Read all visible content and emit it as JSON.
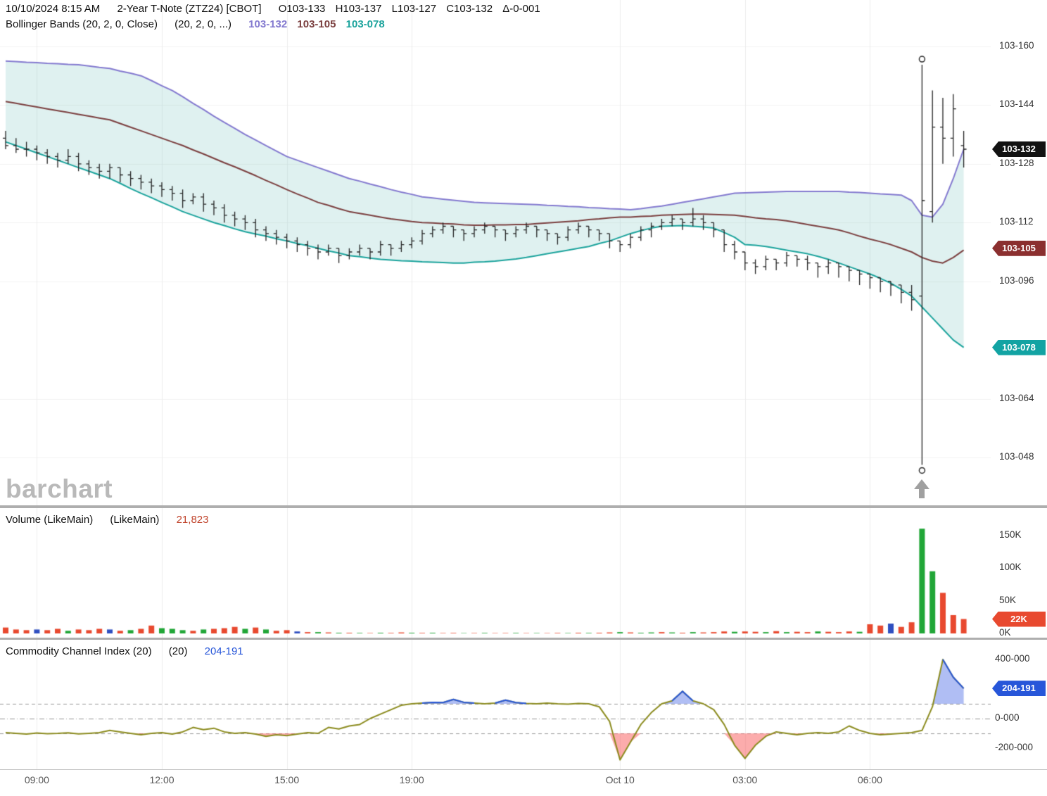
{
  "header": {
    "datetime": "10/10/2024 8:15 AM",
    "symbol": "2-Year T-Note (ZTZ24) [CBOT]",
    "open": "O103-133",
    "high": "H103-137",
    "low": "L103-127",
    "close": "C103-132",
    "change": "Δ-0-001",
    "indicator": "Bollinger Bands (20, 2, 0, Close)",
    "indicator_params": "(20, 2, 0, ...)",
    "bb_upper_value": "103-132",
    "bb_middle_value": "103-105",
    "bb_lower_value": "103-078"
  },
  "volume_header": {
    "label": "Volume (LikeMain)",
    "params": "(LikeMain)",
    "value": "21,823"
  },
  "cci_header": {
    "label": "Commodity Channel Index (20)",
    "params": "(20)",
    "value": "204-191"
  },
  "watermark": "barchart",
  "badges": {
    "last_price": {
      "label": "103-132",
      "value": 132,
      "color": "#121212"
    },
    "bb_middle": {
      "label": "103-105",
      "value": 105,
      "color": "#8b2f2f"
    },
    "bb_lower": {
      "label": "103-078",
      "value": 78,
      "color": "#12a3a3"
    },
    "volume": {
      "label": "22K",
      "value": 22,
      "color": "#e8492f"
    },
    "cci": {
      "label": "204-191",
      "value": 204,
      "color": "#2756d9"
    }
  },
  "x_ticks": [
    {
      "label": "09:00",
      "bar": 3
    },
    {
      "label": "12:00",
      "bar": 15
    },
    {
      "label": "15:00",
      "bar": 27
    },
    {
      "label": "19:00",
      "bar": 39
    },
    {
      "label": "Oct 10",
      "bar": 59
    },
    {
      "label": "03:00",
      "bar": 71
    },
    {
      "label": "06:00",
      "bar": 83
    }
  ],
  "colors": {
    "bb_upper": "#8379cf",
    "bb_middle": "#7b3f3f",
    "bb_lower": "#1ba39c",
    "band_fill": "rgba(140,205,200,0.28)",
    "bar": "#222222",
    "volume_up": "#21a637",
    "volume_down": "#e8492f",
    "volume_neutral": "#2f4fc0",
    "cci_line": "#8b8b1e",
    "cci_above_line": "#2756d9",
    "cci_fill_above": "rgba(80,110,230,0.45)",
    "cci_fill_below": "rgba(250,90,90,0.5)",
    "grid": "#ededed",
    "level_dash": "#999999"
  },
  "chart_data": [
    {
      "type": "ohlc",
      "title": "2-Year T-Note (ZTZ24) [CBOT] with Bollinger Bands (20, 2, 0, Close)",
      "price_format_note": "values are the fractional part of 103-XXX treasury quotes",
      "ylim": [
        46,
        160
      ],
      "y_ticks": [
        {
          "label": "103-160",
          "value": 160
        },
        {
          "label": "103-144",
          "value": 144
        },
        {
          "label": "103-128",
          "value": 128
        },
        {
          "label": "103-112",
          "value": 112
        },
        {
          "label": "103-096",
          "value": 96
        },
        {
          "label": "103-064",
          "value": 64
        },
        {
          "label": "103-048",
          "value": 48
        }
      ],
      "spike_bar_index": 88,
      "bars": [
        [
          135,
          137,
          132,
          133
        ],
        [
          133,
          135,
          131,
          132
        ],
        [
          132,
          134,
          130,
          132
        ],
        [
          132,
          133,
          129,
          131
        ],
        [
          131,
          132,
          128,
          130
        ],
        [
          130,
          131,
          127,
          129
        ],
        [
          129,
          132,
          128,
          130
        ],
        [
          130,
          131,
          126,
          128
        ],
        [
          128,
          129,
          125,
          127
        ],
        [
          127,
          128,
          124,
          126
        ],
        [
          126,
          128,
          124,
          127
        ],
        [
          127,
          127,
          123,
          125
        ],
        [
          125,
          126,
          122,
          124
        ],
        [
          124,
          125,
          121,
          123
        ],
        [
          123,
          124,
          120,
          122
        ],
        [
          122,
          123,
          119,
          121
        ],
        [
          121,
          122,
          118,
          120
        ],
        [
          120,
          121,
          116,
          118
        ],
        [
          118,
          120,
          117,
          119
        ],
        [
          119,
          120,
          115,
          117
        ],
        [
          117,
          118,
          114,
          116
        ],
        [
          116,
          117,
          112,
          114
        ],
        [
          114,
          115,
          111,
          113
        ],
        [
          113,
          114,
          110,
          112
        ],
        [
          112,
          113,
          108,
          110
        ],
        [
          110,
          111,
          107,
          109
        ],
        [
          109,
          110,
          106,
          108
        ],
        [
          108,
          109,
          105,
          107
        ],
        [
          107,
          108,
          104,
          106
        ],
        [
          106,
          107,
          103,
          105
        ],
        [
          105,
          106,
          102,
          104
        ],
        [
          104,
          106,
          103,
          105
        ],
        [
          105,
          105,
          101,
          103
        ],
        [
          103,
          105,
          102,
          104
        ],
        [
          104,
          106,
          103,
          105
        ],
        [
          105,
          105,
          102,
          104
        ],
        [
          104,
          107,
          103,
          106
        ],
        [
          106,
          106,
          103,
          105
        ],
        [
          105,
          107,
          104,
          106
        ],
        [
          106,
          108,
          105,
          107
        ],
        [
          107,
          110,
          106,
          109
        ],
        [
          109,
          111,
          108,
          110
        ],
        [
          110,
          112,
          109,
          111
        ],
        [
          111,
          111,
          108,
          110
        ],
        [
          110,
          110,
          107,
          109
        ],
        [
          109,
          111,
          108,
          110
        ],
        [
          110,
          112,
          109,
          111
        ],
        [
          111,
          111,
          108,
          110
        ],
        [
          110,
          110,
          107,
          109
        ],
        [
          109,
          111,
          108,
          110
        ],
        [
          110,
          112,
          109,
          111
        ],
        [
          111,
          111,
          108,
          110
        ],
        [
          110,
          110,
          107,
          109
        ],
        [
          109,
          109,
          106,
          108
        ],
        [
          108,
          111,
          107,
          110
        ],
        [
          110,
          112,
          109,
          111
        ],
        [
          111,
          111,
          108,
          110
        ],
        [
          110,
          110,
          107,
          109
        ],
        [
          109,
          109,
          105,
          107
        ],
        [
          107,
          107,
          104,
          106
        ],
        [
          106,
          109,
          105,
          108
        ],
        [
          108,
          111,
          107,
          110
        ],
        [
          110,
          112,
          108,
          111
        ],
        [
          111,
          113,
          110,
          112
        ],
        [
          112,
          114,
          111,
          113
        ],
        [
          113,
          113,
          110,
          112
        ],
        [
          112,
          116,
          111,
          113
        ],
        [
          113,
          114,
          110,
          112
        ],
        [
          112,
          112,
          108,
          110
        ],
        [
          110,
          110,
          104,
          106
        ],
        [
          106,
          107,
          102,
          104
        ],
        [
          104,
          104,
          99,
          101
        ],
        [
          101,
          102,
          98,
          100
        ],
        [
          100,
          103,
          99,
          102
        ],
        [
          102,
          102,
          99,
          101
        ],
        [
          101,
          104,
          100,
          103
        ],
        [
          103,
          103,
          100,
          102
        ],
        [
          102,
          103,
          99,
          101
        ],
        [
          101,
          101,
          97,
          100
        ],
        [
          100,
          102,
          98,
          101
        ],
        [
          101,
          101,
          97,
          100
        ],
        [
          100,
          100,
          96,
          99
        ],
        [
          99,
          99,
          95,
          98
        ],
        [
          98,
          98,
          94,
          97
        ],
        [
          97,
          97,
          93,
          96
        ],
        [
          96,
          96,
          92,
          95
        ],
        [
          95,
          95,
          90,
          93
        ],
        [
          93,
          95,
          88,
          91
        ],
        [
          92,
          155,
          46,
          118
        ],
        [
          115,
          148,
          112,
          138
        ],
        [
          138,
          146,
          128,
          135
        ],
        [
          135,
          147,
          130,
          143
        ],
        [
          133,
          137,
          127,
          132
        ]
      ],
      "bands": {
        "upper": [
          156,
          155.9,
          155.7,
          155.6,
          155.4,
          155.3,
          155.1,
          155,
          154.7,
          154.3,
          154,
          153.3,
          152.7,
          152,
          150.7,
          149.3,
          148,
          146.3,
          144.5,
          142.8,
          141,
          139.3,
          137.7,
          136,
          134.5,
          133,
          131.5,
          130,
          129,
          128,
          127,
          126,
          125,
          124,
          123.3,
          122.5,
          121.8,
          121,
          120.3,
          119.7,
          119,
          118.7,
          118.4,
          118.1,
          117.8,
          117.5,
          117.4,
          117.3,
          117.2,
          117.1,
          117,
          116.9,
          116.7,
          116.6,
          116.4,
          116.3,
          116.1,
          116,
          115.8,
          115.7,
          115.5,
          115.8,
          116.2,
          116.5,
          117,
          117.5,
          118,
          118.5,
          119,
          119.5,
          120,
          120.1,
          120.2,
          120.3,
          120.4,
          120.5,
          120.5,
          120.5,
          120.5,
          120.5,
          120.5,
          120.3,
          120.2,
          120,
          119.8,
          119.7,
          119.5,
          118,
          114,
          113.5,
          117,
          124,
          132
        ],
        "middle": [
          145,
          144.5,
          144,
          143.5,
          143,
          142.5,
          142,
          141.5,
          141,
          140.5,
          140,
          139,
          138,
          137,
          136,
          135,
          134,
          133,
          131.8,
          130.7,
          129.5,
          128.3,
          127.2,
          126,
          124.8,
          123.5,
          122.3,
          121,
          119.8,
          118.7,
          117.5,
          116.7,
          115.8,
          115,
          114.5,
          114,
          113.5,
          113,
          112.7,
          112.3,
          112,
          111.9,
          111.7,
          111.6,
          111.4,
          111.3,
          111.3,
          111.4,
          111.4,
          111.5,
          111.5,
          111.7,
          111.9,
          112.1,
          112.3,
          112.5,
          112.8,
          113,
          113.3,
          113.5,
          113.5,
          113.7,
          113.8,
          114,
          114.1,
          114.2,
          114.3,
          114.3,
          114.2,
          114.1,
          114,
          113.7,
          113.3,
          113,
          112.8,
          112.5,
          112,
          111.5,
          111,
          110.5,
          110,
          109.2,
          108.3,
          107.5,
          106.8,
          106,
          105,
          104,
          102.5,
          101.5,
          101,
          102.5,
          104.5
        ],
        "lower": [
          134,
          133,
          132,
          131,
          130,
          129,
          128,
          127,
          126,
          125,
          124,
          122.7,
          121.3,
          120,
          118.8,
          117.5,
          116.3,
          115,
          114,
          113,
          112,
          111.2,
          110.3,
          109.5,
          108.9,
          108.3,
          107.6,
          107,
          106.3,
          105.7,
          105,
          104.3,
          103.7,
          103,
          102.7,
          102.3,
          102,
          101.8,
          101.6,
          101.5,
          101.3,
          101.2,
          101.1,
          101,
          101,
          101.2,
          101.3,
          101.5,
          101.8,
          102.1,
          102.5,
          103,
          103.5,
          104,
          104.5,
          105,
          105.5,
          106.3,
          107,
          108,
          109,
          109.8,
          110.5,
          111,
          111.1,
          111.2,
          111,
          110.8,
          110.5,
          109.3,
          108,
          106,
          105.8,
          105.5,
          105,
          104.5,
          104,
          103.5,
          102.8,
          102,
          101,
          100,
          99,
          98,
          96.8,
          95.5,
          93.8,
          92,
          89,
          86,
          83,
          80,
          78
        ]
      }
    },
    {
      "type": "bar",
      "name": "Volume (LikeMain)",
      "unit": "K",
      "ylim": [
        0,
        170
      ],
      "y_ticks": [
        {
          "label": "150K",
          "value": 150
        },
        {
          "label": "100K",
          "value": 100
        },
        {
          "label": "50K",
          "value": 50
        },
        {
          "label": "0K",
          "value": 0
        }
      ],
      "values": [
        9,
        6,
        5,
        6,
        5,
        7,
        4,
        6,
        5,
        7,
        6,
        4,
        5,
        7,
        12,
        8,
        7,
        5,
        4,
        6,
        7,
        8,
        10,
        7,
        9,
        6,
        4,
        5,
        3,
        2,
        2,
        1.5,
        1,
        1,
        0.8,
        0.6,
        1,
        0.8,
        1.5,
        1,
        0.8,
        1,
        0.6,
        0.8,
        0.5,
        0.6,
        0.8,
        0.5,
        0.6,
        0.8,
        0.5,
        0.6,
        0.5,
        0.8,
        0.6,
        1,
        0.8,
        1,
        1.5,
        2,
        1.5,
        1,
        1.5,
        2,
        1.5,
        1,
        2,
        1.5,
        2,
        3,
        2.5,
        3,
        2.5,
        2,
        3.5,
        2,
        2.5,
        2,
        3,
        2.5,
        2,
        3,
        2.5,
        14,
        12,
        15,
        10,
        17,
        160,
        95,
        62,
        28,
        22
      ],
      "bar_colors": [
        "r",
        "r",
        "r",
        "b",
        "r",
        "r",
        "g",
        "r",
        "r",
        "r",
        "b",
        "r",
        "g",
        "r",
        "r",
        "g",
        "g",
        "g",
        "r",
        "g",
        "r",
        "r",
        "r",
        "g",
        "r",
        "g",
        "r",
        "r",
        "b",
        "r",
        "g",
        "r",
        "g",
        "r",
        "g",
        "r",
        "g",
        "r",
        "r",
        "g",
        "r",
        "g",
        "r",
        "r",
        "g",
        "r",
        "g",
        "r",
        "r",
        "g",
        "r",
        "g",
        "r",
        "r",
        "g",
        "r",
        "g",
        "r",
        "r",
        "g",
        "r",
        "g",
        "g",
        "r",
        "g",
        "r",
        "g",
        "r",
        "r",
        "r",
        "g",
        "r",
        "r",
        "g",
        "r",
        "g",
        "r",
        "r",
        "g",
        "r",
        "r",
        "r",
        "g",
        "r",
        "r",
        "b",
        "r",
        "r",
        "g",
        "g",
        "r",
        "r",
        "r"
      ]
    },
    {
      "type": "line",
      "name": "Commodity Channel Index (20)",
      "ylim": [
        -300,
        480
      ],
      "levels": [
        100,
        0,
        -100
      ],
      "y_ticks": [
        {
          "label": "400-000",
          "value": 400
        },
        {
          "label": "0-000",
          "value": 0
        },
        {
          "label": "-200-000",
          "value": -200
        }
      ],
      "values": [
        -95,
        -100,
        -105,
        -98,
        -102,
        -100,
        -96,
        -104,
        -100,
        -95,
        -80,
        -90,
        -100,
        -110,
        -100,
        -95,
        -105,
        -90,
        -60,
        -75,
        -65,
        -90,
        -100,
        -95,
        -105,
        -120,
        -110,
        -115,
        -105,
        -95,
        -100,
        -60,
        -70,
        -50,
        -40,
        0,
        30,
        60,
        90,
        100,
        105,
        110,
        108,
        130,
        110,
        105,
        100,
        105,
        125,
        108,
        102,
        100,
        105,
        100,
        98,
        102,
        100,
        80,
        -20,
        -280,
        -160,
        -40,
        40,
        100,
        120,
        185,
        120,
        100,
        60,
        -40,
        -180,
        -270,
        -180,
        -120,
        -90,
        -100,
        -110,
        -100,
        -95,
        -100,
        -90,
        -50,
        -80,
        -100,
        -110,
        -105,
        -100,
        -95,
        -80,
        80,
        400,
        280,
        204
      ]
    }
  ]
}
